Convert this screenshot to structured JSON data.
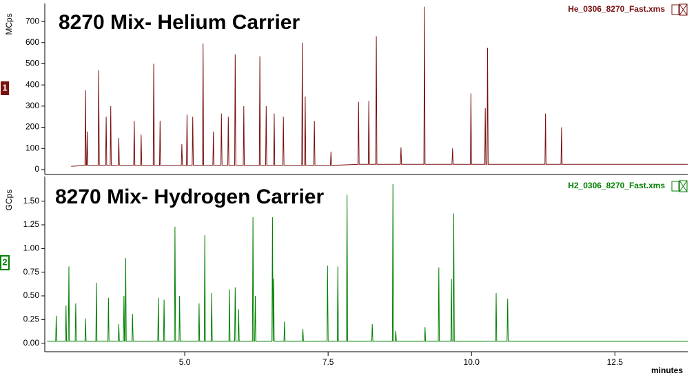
{
  "chart_data": [
    {
      "type": "line",
      "title": "8270 Mix- Helium Carrier",
      "file": "He_0306_8270_Fast.xms",
      "ylabel": "MCps",
      "trace_label": "1",
      "xlim": [
        2.56,
        13.77
      ],
      "ylim": [
        -23,
        785
      ],
      "yticks": [
        0,
        100,
        200,
        300,
        400,
        500,
        600,
        700
      ],
      "series": [
        {
          "color": "#7a1010",
          "x": [
            3.02,
            3.26,
            3.27,
            3.28,
            3.29,
            3.3,
            3.31,
            3.49,
            3.5,
            3.51,
            3.62,
            3.63,
            3.64,
            3.7,
            3.71,
            3.72,
            3.84,
            3.85,
            3.86,
            4.11,
            4.12,
            4.13,
            4.23,
            4.24,
            4.25,
            4.45,
            4.46,
            4.47,
            4.56,
            4.57,
            4.58,
            4.94,
            4.95,
            4.96,
            5.03,
            5.04,
            5.05,
            5.13,
            5.14,
            5.15,
            5.31,
            5.32,
            5.33,
            5.49,
            5.5,
            5.51,
            5.63,
            5.64,
            5.65,
            5.75,
            5.76,
            5.77,
            5.87,
            5.88,
            5.89,
            6.02,
            6.03,
            6.04,
            6.3,
            6.31,
            6.32,
            6.41,
            6.42,
            6.43,
            6.55,
            6.56,
            6.57,
            6.71,
            6.72,
            6.73,
            7.04,
            7.05,
            7.06,
            7.09,
            7.1,
            7.11,
            7.25,
            7.26,
            7.27,
            7.54,
            7.55,
            7.56,
            8.02,
            8.03,
            8.04,
            8.2,
            8.21,
            8.22,
            8.33,
            8.34,
            8.35,
            8.76,
            8.77,
            8.78,
            9.17,
            9.18,
            9.19,
            9.66,
            9.67,
            9.68,
            9.98,
            9.99,
            10.0,
            10.23,
            10.24,
            10.25,
            10.27,
            10.28,
            10.29,
            11.28,
            11.29,
            11.3,
            11.56,
            11.57,
            11.58,
            13.77
          ],
          "values": [
            15,
            20,
            375,
            20,
            20,
            180,
            20,
            20,
            470,
            20,
            20,
            250,
            20,
            20,
            300,
            20,
            20,
            150,
            20,
            20,
            230,
            20,
            20,
            165,
            20,
            20,
            500,
            20,
            20,
            230,
            20,
            20,
            120,
            20,
            20,
            260,
            20,
            20,
            250,
            20,
            20,
            595,
            20,
            20,
            180,
            20,
            20,
            265,
            20,
            20,
            250,
            20,
            20,
            545,
            20,
            20,
            300,
            20,
            20,
            535,
            20,
            20,
            300,
            20,
            20,
            265,
            20,
            20,
            250,
            20,
            20,
            600,
            20,
            20,
            345,
            20,
            20,
            230,
            20,
            20,
            85,
            20,
            25,
            320,
            25,
            25,
            325,
            25,
            25,
            630,
            25,
            25,
            105,
            25,
            25,
            770,
            25,
            25,
            100,
            25,
            25,
            360,
            25,
            25,
            290,
            25,
            25,
            575,
            25,
            25,
            265,
            25,
            25,
            200,
            25,
            25
          ]
        }
      ]
    },
    {
      "type": "line",
      "title": "8270 Mix- Hydrogen Carrier",
      "file": "H2_0306_8270_Fast.xms",
      "ylabel": "GCps",
      "trace_label": "2",
      "xlabel": "minutes",
      "xlim": [
        2.56,
        13.77
      ],
      "ylim": [
        -0.09,
        1.76
      ],
      "xticks": [
        {
          "value": 5,
          "label": "5.0"
        },
        {
          "value": 7.5,
          "label": "7.5"
        },
        {
          "value": 10,
          "label": "10.0"
        },
        {
          "value": 12.5,
          "label": "12.5"
        }
      ],
      "yticks": [
        {
          "value": 0,
          "label": "0.00"
        },
        {
          "value": 0.25,
          "label": "0.25"
        },
        {
          "value": 0.5,
          "label": "0.50"
        },
        {
          "value": 0.75,
          "label": "0.75"
        },
        {
          "value": 1,
          "label": "1.00"
        },
        {
          "value": 1.25,
          "label": "1.25"
        },
        {
          "value": 1.5,
          "label": "1.50"
        }
      ],
      "series": [
        {
          "color": "#008000",
          "x": [
            2.6,
            2.75,
            2.76,
            2.77,
            2.92,
            2.93,
            2.94,
            2.97,
            2.98,
            2.99,
            3.09,
            3.1,
            3.11,
            3.26,
            3.27,
            3.28,
            3.45,
            3.46,
            3.47,
            3.66,
            3.67,
            3.68,
            3.84,
            3.85,
            3.86,
            3.93,
            3.94,
            3.95,
            3.96,
            3.97,
            3.98,
            4.08,
            4.09,
            4.1,
            4.53,
            4.54,
            4.55,
            4.63,
            4.64,
            4.65,
            4.82,
            4.83,
            4.84,
            4.9,
            4.91,
            4.92,
            5.24,
            5.25,
            5.26,
            5.34,
            5.35,
            5.36,
            5.46,
            5.47,
            5.48,
            5.77,
            5.78,
            5.79,
            5.87,
            5.88,
            5.89,
            5.93,
            5.94,
            5.95,
            6.18,
            6.19,
            6.2,
            6.22,
            6.23,
            6.24,
            6.52,
            6.53,
            6.54,
            6.54,
            6.55,
            6.56,
            6.73,
            6.74,
            6.75,
            7.05,
            7.06,
            7.07,
            7.48,
            7.49,
            7.5,
            7.66,
            7.67,
            7.68,
            7.82,
            7.83,
            7.84,
            8.26,
            8.27,
            8.28,
            8.62,
            8.63,
            8.64,
            8.67,
            8.68,
            8.69,
            9.18,
            9.19,
            9.2,
            9.42,
            9.43,
            9.44,
            9.64,
            9.65,
            9.66,
            9.68,
            9.69,
            9.7,
            10.42,
            10.43,
            10.44,
            10.62,
            10.63,
            10.64,
            13.77
          ],
          "values": [
            0.02,
            0.02,
            0.29,
            0.02,
            0.02,
            0.4,
            0.02,
            0.02,
            0.81,
            0.02,
            0.02,
            0.42,
            0.02,
            0.02,
            0.26,
            0.02,
            0.02,
            0.64,
            0.02,
            0.02,
            0.48,
            0.02,
            0.02,
            0.2,
            0.02,
            0.02,
            0.5,
            0.02,
            0.02,
            0.9,
            0.02,
            0.02,
            0.31,
            0.02,
            0.02,
            0.48,
            0.02,
            0.02,
            0.46,
            0.02,
            0.02,
            1.23,
            0.02,
            0.02,
            0.5,
            0.02,
            0.02,
            0.42,
            0.02,
            0.02,
            1.14,
            0.02,
            0.02,
            0.53,
            0.02,
            0.02,
            0.57,
            0.02,
            0.02,
            0.59,
            0.02,
            0.02,
            0.36,
            0.02,
            0.02,
            1.33,
            0.02,
            0.02,
            0.5,
            0.02,
            0.02,
            1.33,
            0.02,
            0.02,
            0.68,
            0.02,
            0.02,
            0.23,
            0.02,
            0.02,
            0.15,
            0.02,
            0.02,
            0.82,
            0.02,
            0.02,
            0.81,
            0.02,
            0.02,
            1.57,
            0.02,
            0.02,
            0.2,
            0.02,
            0.02,
            1.68,
            0.02,
            0.02,
            0.13,
            0.02,
            0.02,
            0.17,
            0.02,
            0.02,
            0.8,
            0.02,
            0.02,
            0.68,
            0.02,
            0.02,
            1.37,
            0.02,
            0.02,
            0.53,
            0.02,
            0.02,
            0.47,
            0.02,
            0.02
          ]
        }
      ]
    }
  ]
}
